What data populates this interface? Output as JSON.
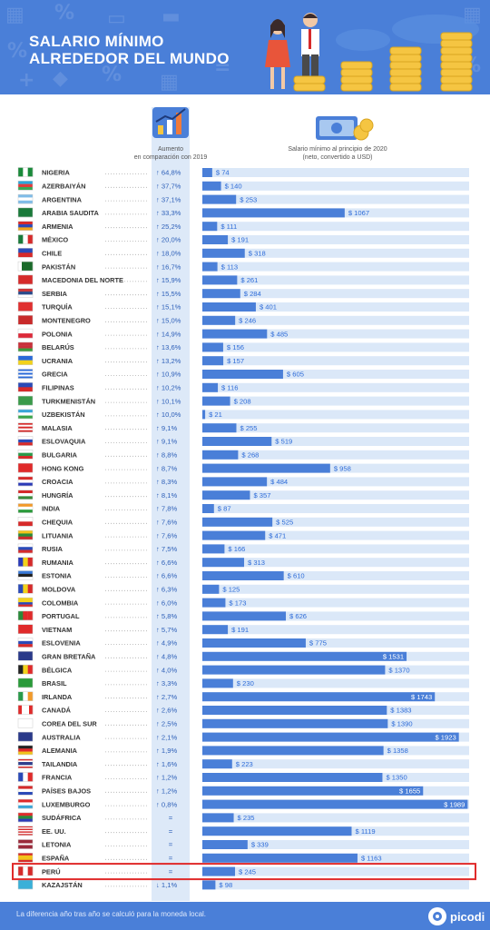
{
  "header": {
    "title_line1": "Salario mínimo",
    "title_line2": "alrededor del mundo"
  },
  "chart_data": {
    "type": "bar",
    "column_headers": {
      "increase": [
        "Aumento",
        "en comparación con 2019"
      ],
      "salary": [
        "Salario mínimo al principio de 2020",
        "(neto, convertido a USD)"
      ]
    },
    "xlim": [
      0,
      2000
    ],
    "value_prefix": "$ ",
    "highlight": "PERÚ",
    "rows": [
      {
        "country": "NIGERIA",
        "increase": "64,8%",
        "direction": "up",
        "value": 74,
        "flag": [
          "#1a8a3a",
          "#ffffff",
          "#1a8a3a"
        ],
        "flag_dir": "v"
      },
      {
        "country": "AZERBAIYÁN",
        "increase": "37,7%",
        "direction": "up",
        "value": 140,
        "flag": [
          "#2aa6db",
          "#e23a3a",
          "#3aa655"
        ],
        "flag_dir": "h"
      },
      {
        "country": "ARGENTINA",
        "increase": "37,1%",
        "direction": "up",
        "value": 253,
        "flag": [
          "#7fbce8",
          "#ffffff",
          "#7fbce8"
        ],
        "flag_dir": "h"
      },
      {
        "country": "ARABIA SAUDITA",
        "increase": "33,3%",
        "direction": "up",
        "value": 1067,
        "flag": [
          "#1a7a3a"
        ],
        "flag_dir": "h"
      },
      {
        "country": "ARMENIA",
        "increase": "25,2%",
        "direction": "up",
        "value": 111,
        "flag": [
          "#d62a2a",
          "#2a4ab8",
          "#f2a41a"
        ],
        "flag_dir": "h"
      },
      {
        "country": "MÉXICO",
        "increase": "20,0%",
        "direction": "up",
        "value": 191,
        "flag": [
          "#1a7a3a",
          "#ffffff",
          "#d62a2a"
        ],
        "flag_dir": "v"
      },
      {
        "country": "CHILE",
        "increase": "18,0%",
        "direction": "up",
        "value": 318,
        "flag": [
          "#2a4ab8",
          "#d62a2a"
        ],
        "flag_dir": "h"
      },
      {
        "country": "PAKISTÁN",
        "increase": "16,7%",
        "direction": "up",
        "value": 113,
        "flag": [
          "#ffffff",
          "#1a6a2a",
          "#1a6a2a",
          "#1a6a2a"
        ],
        "flag_dir": "v"
      },
      {
        "country": "MACEDONIA DEL NORTE",
        "increase": "15,9%",
        "direction": "up",
        "value": 261,
        "flag": [
          "#d62a2a"
        ],
        "flag_dir": "h"
      },
      {
        "country": "SERBIA",
        "increase": "15,5%",
        "direction": "up",
        "value": 284,
        "flag": [
          "#c8363a",
          "#2a4a8a",
          "#ffffff"
        ],
        "flag_dir": "h"
      },
      {
        "country": "TURQUÍA",
        "increase": "15,1%",
        "direction": "up",
        "value": 401,
        "flag": [
          "#e03030"
        ],
        "flag_dir": "h"
      },
      {
        "country": "MONTENEGRO",
        "increase": "15,0%",
        "direction": "up",
        "value": 246,
        "flag": [
          "#c82a2a"
        ],
        "flag_dir": "h"
      },
      {
        "country": "POLONIA",
        "increase": "14,9%",
        "direction": "up",
        "value": 485,
        "flag": [
          "#ffffff",
          "#dc2a3a"
        ],
        "flag_dir": "h"
      },
      {
        "country": "BELARÚS",
        "increase": "13,6%",
        "direction": "up",
        "value": 156,
        "flag": [
          "#c8303a",
          "#c8303a",
          "#3a9a3a"
        ],
        "flag_dir": "h"
      },
      {
        "country": "UCRANIA",
        "increase": "13,2%",
        "direction": "up",
        "value": 157,
        "flag": [
          "#2a6ad8",
          "#f2d21a"
        ],
        "flag_dir": "h"
      },
      {
        "country": "GRECIA",
        "increase": "10,9%",
        "direction": "up",
        "value": 605,
        "flag": [
          "#2a6ad8",
          "#ffffff",
          "#2a6ad8",
          "#ffffff",
          "#2a6ad8"
        ],
        "flag_dir": "h"
      },
      {
        "country": "FILIPINAS",
        "increase": "10,2%",
        "direction": "up",
        "value": 116,
        "flag": [
          "#2a4ab8",
          "#d62a2a"
        ],
        "flag_dir": "h"
      },
      {
        "country": "TURKMENISTÁN",
        "increase": "10,1%",
        "direction": "up",
        "value": 208,
        "flag": [
          "#3a9a4a"
        ],
        "flag_dir": "h"
      },
      {
        "country": "UZBEKISTÁN",
        "increase": "10,0%",
        "direction": "up",
        "value": 21,
        "flag": [
          "#3aa6d8",
          "#ffffff",
          "#3aa64a"
        ],
        "flag_dir": "h"
      },
      {
        "country": "MALASIA",
        "increase": "9,1%",
        "direction": "up",
        "value": 255,
        "flag": [
          "#d62a2a",
          "#ffffff",
          "#d62a2a",
          "#ffffff",
          "#d62a2a"
        ],
        "flag_dir": "h"
      },
      {
        "country": "ESLOVAQUIA",
        "increase": "9,1%",
        "direction": "up",
        "value": 519,
        "flag": [
          "#ffffff",
          "#2a4ab8",
          "#d62a2a"
        ],
        "flag_dir": "h"
      },
      {
        "country": "BULGARIA",
        "increase": "8,8%",
        "direction": "up",
        "value": 268,
        "flag": [
          "#ffffff",
          "#2a9a4a",
          "#d62a2a"
        ],
        "flag_dir": "h"
      },
      {
        "country": "HONG KONG",
        "increase": "8,7%",
        "direction": "up",
        "value": 958,
        "flag": [
          "#e02a2a"
        ],
        "flag_dir": "h"
      },
      {
        "country": "CROACIA",
        "increase": "8,3%",
        "direction": "up",
        "value": 484,
        "flag": [
          "#d62a2a",
          "#ffffff",
          "#2a3ab8"
        ],
        "flag_dir": "h"
      },
      {
        "country": "HUNGRÍA",
        "increase": "8,1%",
        "direction": "up",
        "value": 357,
        "flag": [
          "#d62a2a",
          "#ffffff",
          "#3a8a3a"
        ],
        "flag_dir": "h"
      },
      {
        "country": "INDIA",
        "increase": "7,8%",
        "direction": "up",
        "value": 87,
        "flag": [
          "#f29a2a",
          "#ffffff",
          "#2a9a3a"
        ],
        "flag_dir": "h"
      },
      {
        "country": "CHEQUIA",
        "increase": "7,6%",
        "direction": "up",
        "value": 525,
        "flag": [
          "#ffffff",
          "#d62a2a"
        ],
        "flag_dir": "h"
      },
      {
        "country": "LITUANIA",
        "increase": "7,6%",
        "direction": "up",
        "value": 471,
        "flag": [
          "#f2c21a",
          "#2a8a3a",
          "#c82a2a"
        ],
        "flag_dir": "h"
      },
      {
        "country": "RUSIA",
        "increase": "7,5%",
        "direction": "up",
        "value": 166,
        "flag": [
          "#ffffff",
          "#2a4ab8",
          "#d62a2a"
        ],
        "flag_dir": "h"
      },
      {
        "country": "RUMANIA",
        "increase": "6,6%",
        "direction": "up",
        "value": 313,
        "flag": [
          "#2a3ab8",
          "#f2d21a",
          "#d62a2a"
        ],
        "flag_dir": "v"
      },
      {
        "country": "ESTONIA",
        "increase": "6,6%",
        "direction": "up",
        "value": 610,
        "flag": [
          "#3a7ad8",
          "#222222",
          "#ffffff"
        ],
        "flag_dir": "h"
      },
      {
        "country": "MOLDOVA",
        "increase": "6,3%",
        "direction": "up",
        "value": 125,
        "flag": [
          "#2a4ab8",
          "#f2d21a",
          "#d62a2a"
        ],
        "flag_dir": "v"
      },
      {
        "country": "COLOMBIA",
        "increase": "6,0%",
        "direction": "up",
        "value": 173,
        "flag": [
          "#f2d21a",
          "#f2d21a",
          "#2a4ab8",
          "#d62a2a"
        ],
        "flag_dir": "h"
      },
      {
        "country": "PORTUGAL",
        "increase": "5,8%",
        "direction": "up",
        "value": 626,
        "flag": [
          "#2a8a3a",
          "#e02a2a",
          "#e02a2a"
        ],
        "flag_dir": "v"
      },
      {
        "country": "VIETNAM",
        "increase": "5,7%",
        "direction": "up",
        "value": 191,
        "flag": [
          "#e02a2a"
        ],
        "flag_dir": "h"
      },
      {
        "country": "ESLOVENIA",
        "increase": "4,9%",
        "direction": "up",
        "value": 775,
        "flag": [
          "#ffffff",
          "#2a4ab8",
          "#d62a2a"
        ],
        "flag_dir": "h"
      },
      {
        "country": "GRAN BRETAÑA",
        "increase": "4,8%",
        "direction": "up",
        "value": 1531,
        "flag": [
          "#2a3a8a"
        ],
        "flag_dir": "h"
      },
      {
        "country": "BÉLGICA",
        "increase": "4,0%",
        "direction": "up",
        "value": 1370,
        "flag": [
          "#222222",
          "#f2d21a",
          "#e02a2a"
        ],
        "flag_dir": "v"
      },
      {
        "country": "BRASIL",
        "increase": "3,3%",
        "direction": "up",
        "value": 230,
        "flag": [
          "#2a9a3a"
        ],
        "flag_dir": "h"
      },
      {
        "country": "IRLANDA",
        "increase": "2,7%",
        "direction": "up",
        "value": 1743,
        "flag": [
          "#2a9a4a",
          "#ffffff",
          "#f29a2a"
        ],
        "flag_dir": "v"
      },
      {
        "country": "CANADÁ",
        "increase": "2,6%",
        "direction": "up",
        "value": 1383,
        "flag": [
          "#e02a2a",
          "#ffffff",
          "#ffffff",
          "#e02a2a"
        ],
        "flag_dir": "v"
      },
      {
        "country": "COREA DEL SUR",
        "increase": "2,5%",
        "direction": "up",
        "value": 1390,
        "flag": [
          "#ffffff"
        ],
        "flag_dir": "h"
      },
      {
        "country": "AUSTRALIA",
        "increase": "2,1%",
        "direction": "up",
        "value": 1923,
        "flag": [
          "#2a3a8a"
        ],
        "flag_dir": "h"
      },
      {
        "country": "ALEMANIA",
        "increase": "1,9%",
        "direction": "up",
        "value": 1358,
        "flag": [
          "#222222",
          "#e02a2a",
          "#f2c21a"
        ],
        "flag_dir": "h"
      },
      {
        "country": "TAILANDIA",
        "increase": "1,6%",
        "direction": "up",
        "value": 223,
        "flag": [
          "#d62a2a",
          "#ffffff",
          "#2a3a8a",
          "#2a3a8a",
          "#ffffff",
          "#d62a2a"
        ],
        "flag_dir": "h"
      },
      {
        "country": "FRANCIA",
        "increase": "1,2%",
        "direction": "up",
        "value": 1350,
        "flag": [
          "#2a4ab8",
          "#ffffff",
          "#e02a2a"
        ],
        "flag_dir": "v"
      },
      {
        "country": "PAÍSES BAJOS",
        "increase": "1,2%",
        "direction": "up",
        "value": 1655,
        "flag": [
          "#d62a2a",
          "#ffffff",
          "#2a4ab8"
        ],
        "flag_dir": "h"
      },
      {
        "country": "LUXEMBURGO",
        "increase": "0,8%",
        "direction": "up",
        "value": 1989,
        "flag": [
          "#e02a2a",
          "#ffffff",
          "#3aa6d8"
        ],
        "flag_dir": "h"
      },
      {
        "country": "SUDÁFRICA",
        "increase": "=",
        "direction": "same",
        "value": 235,
        "flag": [
          "#e02a2a",
          "#2a8a3a",
          "#2a3ab8"
        ],
        "flag_dir": "h"
      },
      {
        "country": "EE. UU.",
        "increase": "=",
        "direction": "same",
        "value": 1119,
        "flag": [
          "#d62a2a",
          "#ffffff",
          "#d62a2a",
          "#ffffff",
          "#d62a2a",
          "#ffffff",
          "#d62a2a"
        ],
        "flag_dir": "h"
      },
      {
        "country": "LETONIA",
        "increase": "=",
        "direction": "same",
        "value": 339,
        "flag": [
          "#9a2a3a",
          "#9a2a3a",
          "#ffffff",
          "#9a2a3a",
          "#9a2a3a"
        ],
        "flag_dir": "h"
      },
      {
        "country": "ESPAÑA",
        "increase": "=",
        "direction": "same",
        "value": 1163,
        "flag": [
          "#d62a2a",
          "#f2c21a",
          "#f2c21a",
          "#d62a2a"
        ],
        "flag_dir": "h"
      },
      {
        "country": "PERÚ",
        "increase": "=",
        "direction": "same",
        "value": 245,
        "flag": [
          "#d62a2a",
          "#ffffff",
          "#d62a2a"
        ],
        "flag_dir": "v"
      },
      {
        "country": "KAZAJSTÁN",
        "increase": "1,1%",
        "direction": "down",
        "value": 98,
        "flag": [
          "#3ab0d8"
        ],
        "flag_dir": "h"
      }
    ]
  },
  "footer": {
    "note": "La diferencia año tras año se calculó para la moneda local.",
    "brand": "picodi"
  }
}
